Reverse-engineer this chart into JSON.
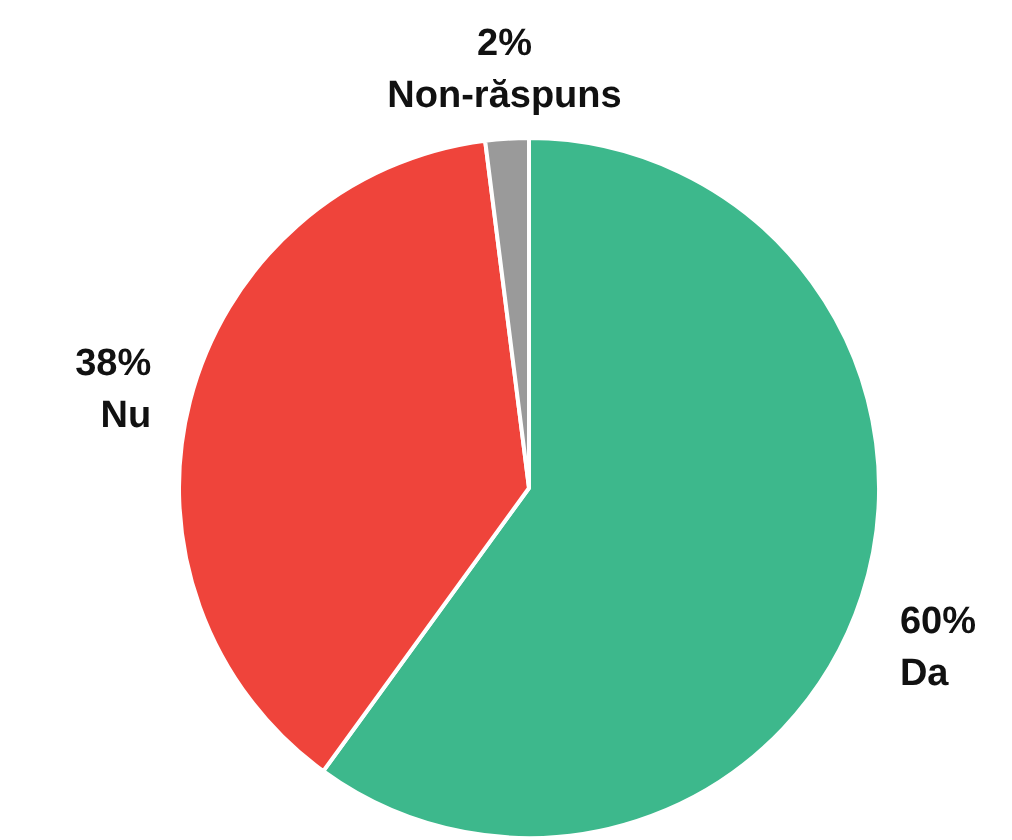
{
  "chart_data": {
    "type": "pie",
    "categories": [
      "Da",
      "Nu",
      "Non-răspuns"
    ],
    "values": [
      60,
      38,
      2
    ],
    "value_labels": [
      "60%",
      "38%",
      "2%"
    ],
    "colors": [
      "#3db88c",
      "#ef443b",
      "#9a9a9a"
    ],
    "legend": false
  }
}
